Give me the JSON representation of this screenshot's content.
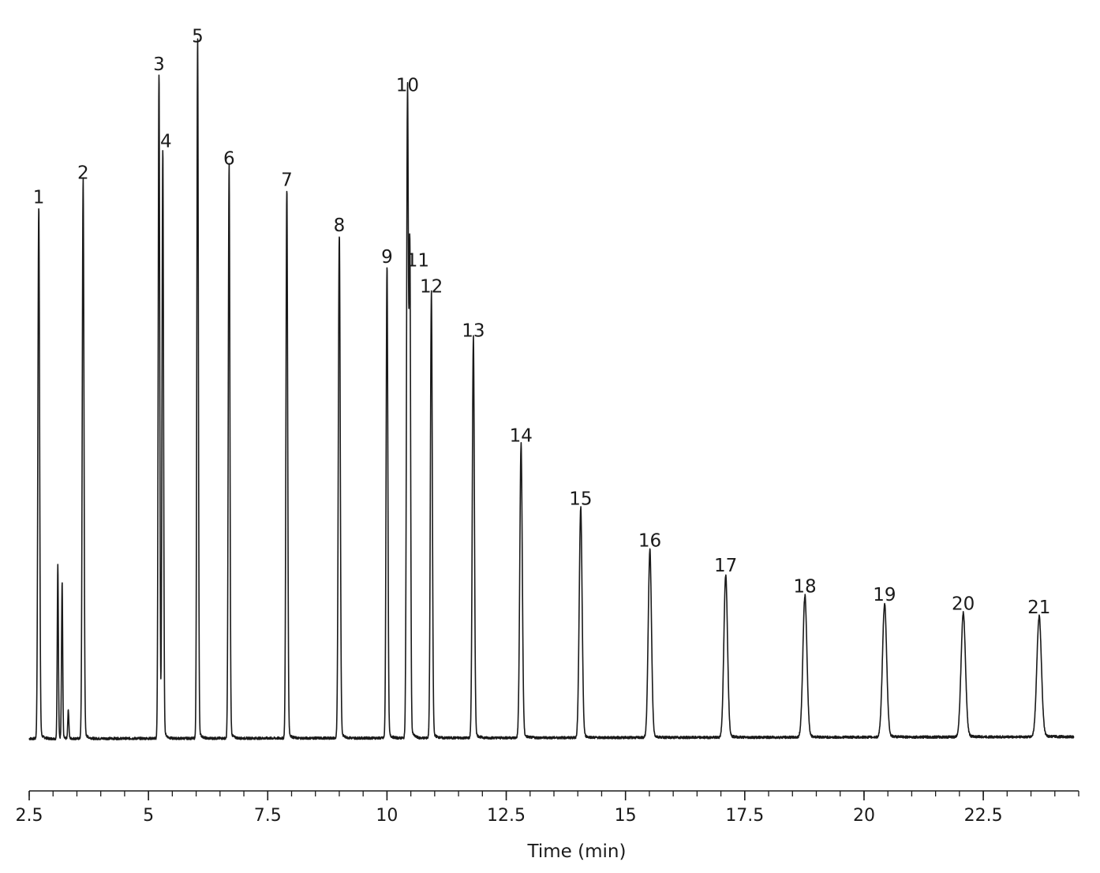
{
  "chart_data": {
    "type": "line",
    "xlabel": "Time (min)",
    "xlim": [
      2.5,
      24.5
    ],
    "ylim": [
      0,
      100
    ],
    "grid": false,
    "line_color": "#1a1a1a",
    "x_ticks": [
      {
        "value": 2.5,
        "label": "2.5"
      },
      {
        "value": 5,
        "label": "5"
      },
      {
        "value": 7.5,
        "label": "7.5"
      },
      {
        "value": 10,
        "label": "10"
      },
      {
        "value": 12.5,
        "label": "12.5"
      },
      {
        "value": 15,
        "label": "15"
      },
      {
        "value": 17.5,
        "label": "17.5"
      },
      {
        "value": 20,
        "label": "20"
      },
      {
        "value": 22.5,
        "label": "22.5"
      }
    ],
    "minor_tick_step": 0.5,
    "peaks": [
      {
        "label": "1",
        "x": 2.7,
        "height": 75.5,
        "width": 0.018
      },
      {
        "label": "2",
        "x": 3.63,
        "height": 79.0,
        "width": 0.018
      },
      {
        "label": "3",
        "x": 5.22,
        "height": 94.5,
        "width": 0.016
      },
      {
        "label": "4",
        "x": 5.3,
        "height": 83.5,
        "width": 0.016
      },
      {
        "label": "5",
        "x": 6.03,
        "height": 98.5,
        "width": 0.016
      },
      {
        "label": "6",
        "x": 6.69,
        "height": 81.0,
        "width": 0.017
      },
      {
        "label": "7",
        "x": 7.9,
        "height": 78.0,
        "width": 0.018
      },
      {
        "label": "8",
        "x": 9.0,
        "height": 71.5,
        "width": 0.02
      },
      {
        "label": "9",
        "x": 10.0,
        "height": 67.0,
        "width": 0.018
      },
      {
        "label": "10",
        "x": 10.43,
        "height": 91.5,
        "width": 0.02
      },
      {
        "label": "11",
        "x": 10.48,
        "height": 66.5,
        "width": 0.016
      },
      {
        "label": "12",
        "x": 10.93,
        "height": 62.8,
        "width": 0.02
      },
      {
        "label": "13",
        "x": 11.81,
        "height": 56.5,
        "width": 0.022
      },
      {
        "label": "14",
        "x": 12.81,
        "height": 41.5,
        "width": 0.026
      },
      {
        "label": "15",
        "x": 14.06,
        "height": 32.5,
        "width": 0.03
      },
      {
        "label": "16",
        "x": 15.51,
        "height": 26.5,
        "width": 0.034
      },
      {
        "label": "17",
        "x": 17.1,
        "height": 23.0,
        "width": 0.038
      },
      {
        "label": "18",
        "x": 18.76,
        "height": 20.0,
        "width": 0.042
      },
      {
        "label": "19",
        "x": 20.43,
        "height": 18.8,
        "width": 0.044
      },
      {
        "label": "20",
        "x": 22.08,
        "height": 17.5,
        "width": 0.046
      },
      {
        "label": "21",
        "x": 23.67,
        "height": 17.0,
        "width": 0.048
      }
    ],
    "minor_peaks": [
      {
        "x": 3.1,
        "height": 24.5,
        "width": 0.012
      },
      {
        "x": 3.19,
        "height": 22.0,
        "width": 0.012
      },
      {
        "x": 3.32,
        "height": 4.0,
        "width": 0.012
      }
    ]
  }
}
